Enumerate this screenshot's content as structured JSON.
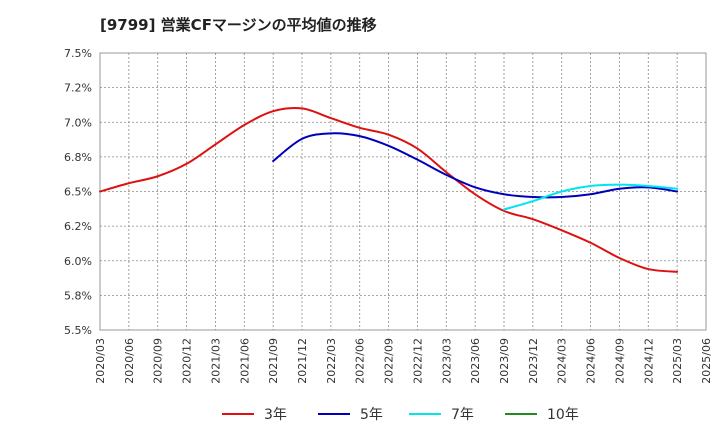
{
  "chart_data": {
    "type": "line",
    "title": "[9799]  営業CFマージンの平均値の推移",
    "xlabel": "",
    "ylabel": "",
    "x_ticks": [
      "2020/03",
      "2020/06",
      "2020/09",
      "2020/12",
      "2021/03",
      "2021/06",
      "2021/09",
      "2021/12",
      "2022/03",
      "2022/06",
      "2022/09",
      "2022/12",
      "2023/03",
      "2023/06",
      "2023/09",
      "2023/12",
      "2024/03",
      "2024/06",
      "2024/09",
      "2024/12",
      "2025/03",
      "2025/06"
    ],
    "y_ticks": [
      "7.5%",
      "7.2%",
      "7.0%",
      "6.8%",
      "6.5%",
      "6.2%",
      "6.0%",
      "5.8%",
      "5.5%"
    ],
    "ylim": [
      5.5,
      7.5
    ],
    "grid": true,
    "legend_position": "bottom",
    "series": [
      {
        "name": "3年",
        "color": "#dd1111",
        "x": [
          "2020/03",
          "2020/06",
          "2020/09",
          "2020/12",
          "2021/03",
          "2021/06",
          "2021/09",
          "2021/12",
          "2022/03",
          "2022/06",
          "2022/09",
          "2022/12",
          "2023/03",
          "2023/06",
          "2023/09",
          "2023/12",
          "2024/03",
          "2024/06",
          "2024/09",
          "2024/12",
          "2025/03"
        ],
        "values": [
          6.5,
          6.56,
          6.61,
          6.7,
          6.84,
          6.98,
          7.08,
          7.1,
          7.03,
          6.96,
          6.91,
          6.81,
          6.64,
          6.48,
          6.36,
          6.3,
          6.22,
          6.13,
          6.02,
          5.94,
          5.92
        ]
      },
      {
        "name": "5年",
        "color": "#0000bb",
        "x": [
          "2021/09",
          "2021/12",
          "2022/03",
          "2022/06",
          "2022/09",
          "2022/12",
          "2023/03",
          "2023/06",
          "2023/09",
          "2023/12",
          "2024/03",
          "2024/06",
          "2024/09",
          "2024/12",
          "2025/03"
        ],
        "values": [
          6.72,
          6.88,
          6.92,
          6.9,
          6.83,
          6.73,
          6.62,
          6.53,
          6.48,
          6.46,
          6.46,
          6.48,
          6.52,
          6.53,
          6.5
        ]
      },
      {
        "name": "7年",
        "color": "#00e5ee",
        "x": [
          "2023/09",
          "2023/12",
          "2024/03",
          "2024/06",
          "2024/09",
          "2024/12",
          "2025/03"
        ],
        "values": [
          6.37,
          6.43,
          6.5,
          6.54,
          6.55,
          6.54,
          6.52
        ]
      },
      {
        "name": "10年",
        "color": "#228b22",
        "x": [],
        "values": []
      }
    ]
  }
}
